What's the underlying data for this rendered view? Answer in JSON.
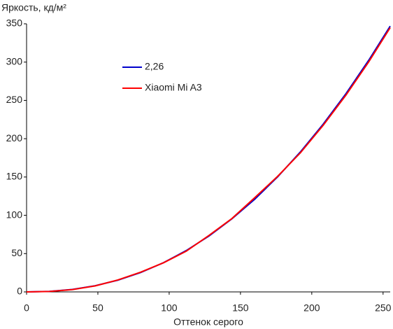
{
  "chart_data": {
    "type": "line",
    "y_label": "Яркость, кд/м²",
    "x_label": "Оттенок серого",
    "x": [
      0,
      16,
      32,
      48,
      64,
      80,
      96,
      112,
      128,
      144,
      160,
      176,
      192,
      208,
      224,
      240,
      255
    ],
    "series": [
      {
        "name": "2,26",
        "color": "#0000cc",
        "values": [
          0,
          0.7,
          3.2,
          8,
          15.3,
          25.3,
          38.1,
          54,
          73.1,
          95.4,
          121,
          150.1,
          182.7,
          219,
          258.9,
          302.6,
          347
        ]
      },
      {
        "name": "Xiaomi Mi A3",
        "color": "#ff0000",
        "values": [
          0,
          0.6,
          3,
          7.8,
          15.6,
          25.8,
          38,
          53.2,
          73.8,
          95.8,
          123,
          150.8,
          181.5,
          217.5,
          257,
          300.5,
          345
        ]
      }
    ],
    "xlim": [
      0,
      255
    ],
    "ylim": [
      0,
      350
    ],
    "xticks": [
      0,
      50,
      100,
      150,
      200,
      250
    ],
    "yticks": [
      0,
      50,
      100,
      150,
      200,
      250,
      300,
      350
    ],
    "grid": false,
    "legend": "upper left"
  }
}
